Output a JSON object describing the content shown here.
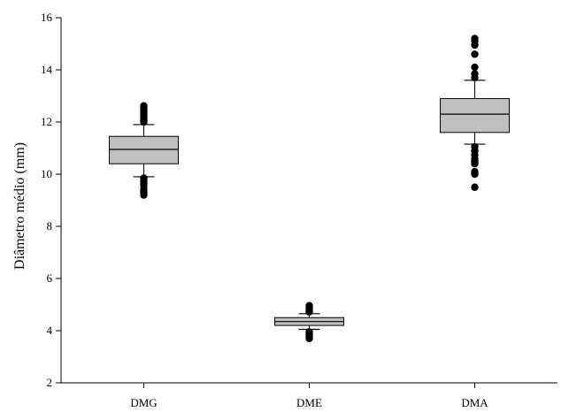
{
  "chart_data": {
    "type": "box",
    "title": "",
    "xlabel": "",
    "ylabel": "Diâmetro médio (mm)",
    "ylim": [
      2,
      16
    ],
    "yticks": [
      "2",
      "4",
      "6",
      "8",
      "10",
      "12",
      "14",
      "16"
    ],
    "grid": false,
    "box_color": "#c0c0c0",
    "categories": [
      "DMG",
      "DME",
      "DMA"
    ],
    "boxes": [
      {
        "category": "DMG",
        "whisker_low": 9.9,
        "q1": 10.4,
        "median": 10.95,
        "q3": 11.45,
        "whisker_high": 11.9,
        "outliers": [
          9.2,
          9.3,
          9.4,
          9.55,
          9.65,
          9.75,
          9.85,
          12.0,
          12.05,
          12.15,
          12.25,
          12.35,
          12.45,
          12.55,
          12.62
        ]
      },
      {
        "category": "DME",
        "whisker_low": 4.05,
        "q1": 4.2,
        "median": 4.35,
        "q3": 4.5,
        "whisker_high": 4.65,
        "outliers": [
          3.7,
          3.78,
          3.86,
          3.95,
          4.72,
          4.8,
          4.88,
          4.96
        ]
      },
      {
        "category": "DMA",
        "whisker_low": 11.15,
        "q1": 11.6,
        "median": 12.3,
        "q3": 12.9,
        "whisker_high": 13.6,
        "outliers": [
          9.5,
          10.0,
          10.1,
          10.4,
          10.5,
          10.6,
          10.75,
          10.9,
          11.05,
          13.7,
          13.85,
          14.1,
          14.6,
          14.95,
          15.1,
          15.2
        ]
      }
    ]
  }
}
